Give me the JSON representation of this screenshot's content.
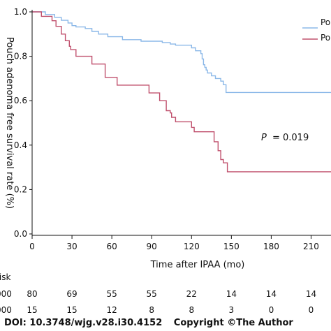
{
  "chart_data": {
    "type": "line",
    "step": true,
    "title": "",
    "ylabel": "Pouch adenoma free survival rate (%)",
    "xlabel": "Time after IPAA (mo)",
    "xlim": [
      0,
      225
    ],
    "ylim": [
      0,
      1.0
    ],
    "x_ticks": [
      "0",
      "30",
      "60",
      "90",
      "120",
      "150",
      "180",
      "210"
    ],
    "y_ticks": [
      "0.0",
      "0.2",
      "0.4",
      "0.6",
      "0.8",
      "1.0"
    ],
    "legend_placement": "top-right",
    "legend": [
      "Po",
      "Po"
    ],
    "annotation": {
      "label": "P",
      "value": "= 0.019"
    },
    "series": [
      {
        "name": "Po",
        "color": "#8bb8e8",
        "points": [
          [
            0,
            1.0
          ],
          [
            10,
            0.988
          ],
          [
            17,
            0.975
          ],
          [
            22,
            0.962
          ],
          [
            27,
            0.95
          ],
          [
            30,
            0.938
          ],
          [
            33,
            0.932
          ],
          [
            40,
            0.925
          ],
          [
            45,
            0.912
          ],
          [
            50,
            0.9
          ],
          [
            57,
            0.888
          ],
          [
            68,
            0.875
          ],
          [
            75,
            0.875
          ],
          [
            82,
            0.868
          ],
          [
            98,
            0.862
          ],
          [
            104,
            0.855
          ],
          [
            108,
            0.85
          ],
          [
            120,
            0.838
          ],
          [
            123,
            0.825
          ],
          [
            127,
            0.812
          ],
          [
            128,
            0.788
          ],
          [
            129,
            0.762
          ],
          [
            130,
            0.75
          ],
          [
            131,
            0.738
          ],
          [
            132,
            0.725
          ],
          [
            135,
            0.712
          ],
          [
            138,
            0.7
          ],
          [
            142,
            0.688
          ],
          [
            144,
            0.672
          ],
          [
            146,
            0.637
          ],
          [
            225,
            0.637
          ]
        ]
      },
      {
        "name": "Po",
        "color": "#c0506d",
        "points": [
          [
            0,
            1.0
          ],
          [
            7,
            0.98
          ],
          [
            15,
            0.96
          ],
          [
            18,
            0.935
          ],
          [
            22,
            0.9
          ],
          [
            25,
            0.87
          ],
          [
            28,
            0.845
          ],
          [
            29,
            0.83
          ],
          [
            33,
            0.8
          ],
          [
            40,
            0.8
          ],
          [
            45,
            0.765
          ],
          [
            55,
            0.705
          ],
          [
            61,
            0.705
          ],
          [
            64,
            0.67
          ],
          [
            80,
            0.67
          ],
          [
            88,
            0.635
          ],
          [
            96,
            0.6
          ],
          [
            101,
            0.555
          ],
          [
            104,
            0.545
          ],
          [
            105,
            0.525
          ],
          [
            108,
            0.505
          ],
          [
            120,
            0.48
          ],
          [
            122,
            0.46
          ],
          [
            134,
            0.46
          ],
          [
            137,
            0.415
          ],
          [
            140,
            0.375
          ],
          [
            142,
            0.335
          ],
          [
            144,
            0.32
          ],
          [
            147,
            0.28
          ],
          [
            225,
            0.28
          ]
        ]
      }
    ]
  },
  "risk_table": {
    "label": "risk",
    "rows": [
      {
        "label": "000",
        "values": [
          "80",
          "69",
          "55",
          "55",
          "22",
          "14",
          "14",
          "14"
        ]
      },
      {
        "label": "000",
        "values": [
          "15",
          "15",
          "12",
          "8",
          "8",
          "3",
          "0",
          "0"
        ]
      }
    ]
  },
  "footer": {
    "doi": "DOI: 10.3748/wjg.v28.i30.4152",
    "copyright": "Copyright ©The Author"
  }
}
